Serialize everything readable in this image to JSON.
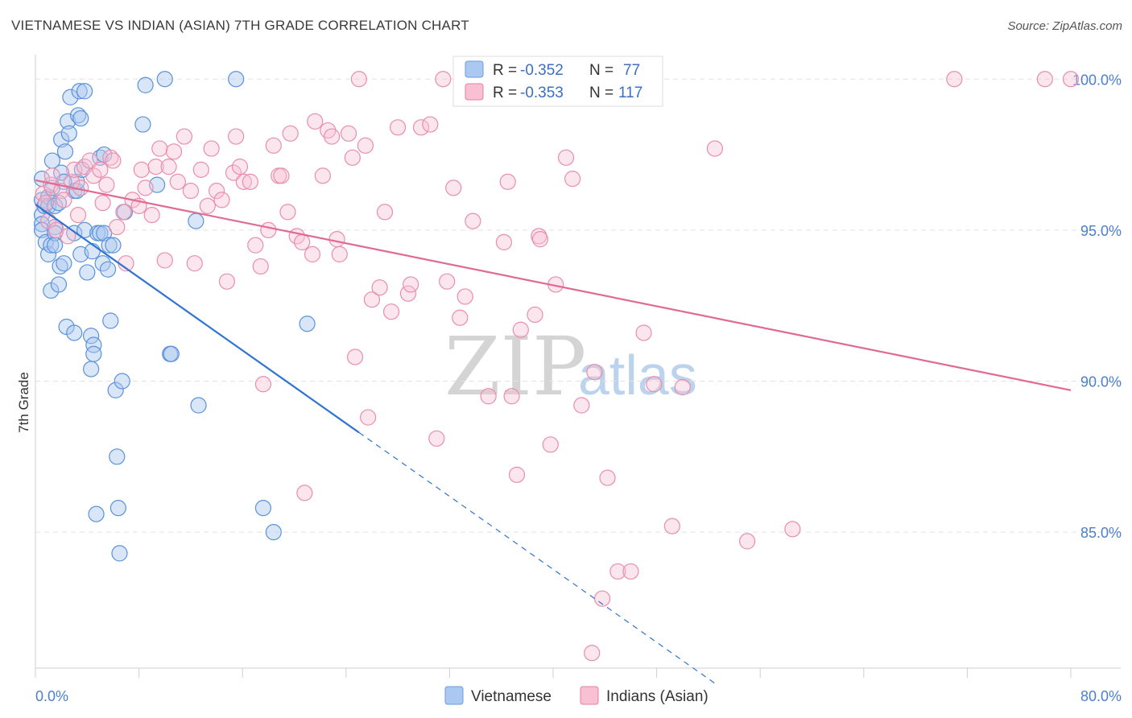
{
  "title": "VIETNAMESE VS INDIAN (ASIAN) 7TH GRADE CORRELATION CHART",
  "source": "Source: ZipAtlas.com",
  "watermark": {
    "zip": "ZIP",
    "atlas": "atlas"
  },
  "legend": {
    "r_label": "R =",
    "n_label": "N =",
    "rows": [
      {
        "name": "Vietnamese",
        "r": "-0.352",
        "n": "77",
        "color": "#6b9ee0",
        "fill": "#aac8f0"
      },
      {
        "name": "Indians (Asian)",
        "r": "-0.353",
        "n": "117",
        "color": "#e97fa2",
        "fill": "#f8c0d2"
      }
    ]
  },
  "chart_data": {
    "type": "scatter",
    "title": "VIETNAMESE VS INDIAN (ASIAN) 7TH GRADE CORRELATION CHART",
    "xlabel": "",
    "ylabel": "7th Grade",
    "xlim": [
      0,
      80
    ],
    "ylim": [
      80.5,
      100.7
    ],
    "x_tick_labels": [
      "0.0%",
      "80.0%"
    ],
    "y_ticks": [
      85,
      90,
      95,
      100
    ],
    "y_tick_labels": [
      "85.0%",
      "90.0%",
      "95.0%",
      "100.0%"
    ],
    "grid": true,
    "series": [
      {
        "name": "Vietnamese",
        "color": "#4a87d8",
        "trend": {
          "x0": 0,
          "y0": 95.85,
          "x1": 25,
          "y1": 88.3,
          "dash_to_x": 52.5
        },
        "points": [
          [
            0.5,
            96.7
          ],
          [
            0.5,
            96.0
          ],
          [
            0.5,
            95.5
          ],
          [
            0.5,
            95.2
          ],
          [
            0.5,
            95.0
          ],
          [
            0.7,
            95.8
          ],
          [
            0.8,
            94.6
          ],
          [
            1.0,
            96.1
          ],
          [
            1.0,
            95.8
          ],
          [
            1.0,
            94.2
          ],
          [
            1.2,
            94.5
          ],
          [
            1.2,
            93.0
          ],
          [
            1.3,
            96.4
          ],
          [
            1.3,
            97.3
          ],
          [
            1.5,
            95.8
          ],
          [
            1.5,
            95.1
          ],
          [
            1.5,
            94.9
          ],
          [
            1.5,
            94.5
          ],
          [
            1.8,
            95.9
          ],
          [
            1.8,
            93.2
          ],
          [
            1.9,
            93.8
          ],
          [
            2.0,
            96.9
          ],
          [
            2.0,
            98.0
          ],
          [
            2.2,
            93.9
          ],
          [
            2.3,
            97.6
          ],
          [
            2.4,
            91.8
          ],
          [
            2.5,
            98.6
          ],
          [
            2.6,
            98.2
          ],
          [
            2.7,
            99.4
          ],
          [
            3.0,
            96.3
          ],
          [
            3.0,
            94.9
          ],
          [
            3.0,
            91.6
          ],
          [
            3.2,
            96.3
          ],
          [
            3.2,
            96.6
          ],
          [
            3.3,
            98.8
          ],
          [
            3.4,
            99.6
          ],
          [
            3.5,
            98.7
          ],
          [
            3.5,
            94.2
          ],
          [
            3.6,
            97.0
          ],
          [
            3.8,
            99.6
          ],
          [
            3.8,
            95.0
          ],
          [
            4.0,
            93.6
          ],
          [
            4.3,
            91.5
          ],
          [
            4.3,
            90.4
          ],
          [
            4.4,
            94.3
          ],
          [
            4.5,
            91.2
          ],
          [
            4.5,
            90.9
          ],
          [
            4.7,
            85.6
          ],
          [
            4.8,
            94.9
          ],
          [
            5.0,
            97.4
          ],
          [
            5.0,
            94.9
          ],
          [
            5.2,
            93.9
          ],
          [
            5.3,
            94.9
          ],
          [
            5.3,
            97.5
          ],
          [
            5.6,
            93.7
          ],
          [
            5.7,
            94.5
          ],
          [
            5.8,
            92.0
          ],
          [
            6.0,
            94.5
          ],
          [
            6.2,
            89.7
          ],
          [
            6.3,
            87.5
          ],
          [
            6.4,
            85.8
          ],
          [
            6.5,
            84.3
          ],
          [
            6.7,
            90.0
          ],
          [
            6.9,
            95.6
          ],
          [
            8.3,
            98.5
          ],
          [
            8.5,
            99.8
          ],
          [
            9.4,
            96.5
          ],
          [
            10.0,
            100.0
          ],
          [
            10.4,
            90.9
          ],
          [
            10.5,
            90.9
          ],
          [
            12.4,
            95.3
          ],
          [
            12.6,
            89.2
          ],
          [
            15.5,
            100.0
          ],
          [
            17.6,
            85.8
          ],
          [
            18.4,
            85.0
          ],
          [
            21.0,
            91.9
          ],
          [
            2.2,
            96.6
          ]
        ]
      },
      {
        "name": "Indians (Asian)",
        "color": "#e06a92",
        "trend": {
          "x0": 0,
          "y0": 96.65,
          "x1": 80,
          "y1": 89.7
        },
        "points": [
          [
            0.6,
            96.2
          ],
          [
            0.8,
            95.9
          ],
          [
            1.0,
            95.3
          ],
          [
            1.2,
            96.5
          ],
          [
            1.3,
            96.8
          ],
          [
            1.6,
            95.0
          ],
          [
            2.0,
            96.3
          ],
          [
            2.2,
            96.0
          ],
          [
            2.5,
            94.8
          ],
          [
            2.8,
            96.6
          ],
          [
            3.0,
            97.0
          ],
          [
            3.3,
            95.5
          ],
          [
            3.5,
            96.4
          ],
          [
            3.8,
            97.1
          ],
          [
            4.2,
            97.3
          ],
          [
            4.5,
            96.8
          ],
          [
            5.0,
            97.0
          ],
          [
            5.2,
            95.9
          ],
          [
            5.5,
            96.5
          ],
          [
            5.8,
            97.4
          ],
          [
            6.0,
            97.3
          ],
          [
            6.3,
            95.1
          ],
          [
            6.8,
            95.6
          ],
          [
            7.0,
            93.9
          ],
          [
            7.5,
            96.0
          ],
          [
            8.0,
            95.8
          ],
          [
            8.2,
            97.0
          ],
          [
            8.5,
            96.4
          ],
          [
            9.0,
            95.5
          ],
          [
            9.3,
            97.1
          ],
          [
            9.6,
            97.7
          ],
          [
            10.0,
            94.0
          ],
          [
            10.3,
            97.1
          ],
          [
            10.7,
            97.6
          ],
          [
            11.0,
            96.6
          ],
          [
            11.5,
            98.1
          ],
          [
            12.0,
            96.3
          ],
          [
            12.3,
            93.9
          ],
          [
            12.8,
            97.0
          ],
          [
            13.3,
            95.8
          ],
          [
            13.6,
            97.7
          ],
          [
            14.0,
            96.3
          ],
          [
            14.4,
            96.0
          ],
          [
            14.8,
            93.3
          ],
          [
            15.3,
            96.9
          ],
          [
            15.5,
            98.1
          ],
          [
            15.8,
            97.1
          ],
          [
            16.1,
            96.6
          ],
          [
            16.6,
            96.6
          ],
          [
            17.0,
            94.5
          ],
          [
            17.4,
            93.8
          ],
          [
            17.6,
            89.9
          ],
          [
            18.0,
            95.0
          ],
          [
            18.4,
            97.8
          ],
          [
            18.8,
            96.8
          ],
          [
            19.0,
            96.8
          ],
          [
            19.5,
            95.6
          ],
          [
            19.7,
            98.2
          ],
          [
            20.2,
            94.8
          ],
          [
            20.6,
            94.6
          ],
          [
            20.8,
            86.3
          ],
          [
            21.4,
            94.2
          ],
          [
            21.6,
            98.6
          ],
          [
            22.2,
            96.8
          ],
          [
            22.6,
            98.3
          ],
          [
            22.9,
            98.1
          ],
          [
            23.3,
            94.7
          ],
          [
            23.5,
            94.2
          ],
          [
            24.2,
            98.2
          ],
          [
            24.5,
            97.4
          ],
          [
            24.7,
            90.8
          ],
          [
            25.0,
            100.0
          ],
          [
            25.5,
            97.8
          ],
          [
            25.7,
            88.8
          ],
          [
            26.0,
            92.7
          ],
          [
            26.6,
            93.1
          ],
          [
            27.0,
            95.6
          ],
          [
            27.5,
            92.3
          ],
          [
            28.0,
            98.4
          ],
          [
            28.8,
            92.9
          ],
          [
            29.0,
            93.2
          ],
          [
            29.8,
            98.4
          ],
          [
            30.5,
            98.5
          ],
          [
            31.0,
            88.1
          ],
          [
            31.5,
            100.0
          ],
          [
            31.8,
            93.3
          ],
          [
            32.3,
            96.4
          ],
          [
            32.8,
            92.1
          ],
          [
            33.2,
            92.8
          ],
          [
            33.8,
            95.3
          ],
          [
            35.0,
            89.5
          ],
          [
            36.2,
            94.6
          ],
          [
            36.5,
            96.6
          ],
          [
            36.8,
            89.5
          ],
          [
            37.2,
            86.9
          ],
          [
            37.5,
            91.7
          ],
          [
            38.6,
            92.2
          ],
          [
            38.9,
            94.8
          ],
          [
            39.0,
            94.7
          ],
          [
            39.8,
            87.9
          ],
          [
            40.2,
            93.2
          ],
          [
            41.0,
            97.4
          ],
          [
            41.5,
            96.7
          ],
          [
            42.2,
            89.2
          ],
          [
            43.2,
            90.3
          ],
          [
            43.8,
            82.8
          ],
          [
            44.2,
            86.8
          ],
          [
            45.0,
            83.7
          ],
          [
            46.0,
            83.7
          ],
          [
            47.0,
            91.6
          ],
          [
            47.8,
            89.9
          ],
          [
            49.2,
            85.2
          ],
          [
            50.0,
            89.8
          ],
          [
            52.5,
            97.7
          ],
          [
            55.0,
            84.7
          ],
          [
            58.5,
            85.1
          ],
          [
            71.0,
            100.0
          ],
          [
            78.0,
            100.0
          ],
          [
            80.0,
            100.0
          ],
          [
            43.0,
            81.0
          ]
        ]
      }
    ]
  }
}
